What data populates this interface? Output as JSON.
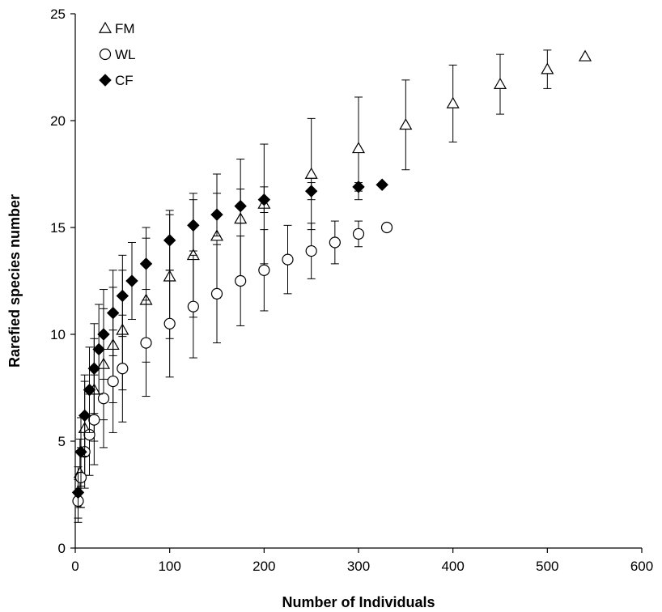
{
  "chart_data": {
    "type": "scatter",
    "title": "",
    "xlabel": "Number of Individuals",
    "ylabel": "Rarefied species number",
    "xlim": [
      0,
      600
    ],
    "ylim": [
      0,
      25
    ],
    "xticks": [
      0,
      100,
      200,
      300,
      400,
      500,
      600
    ],
    "yticks": [
      0,
      5,
      10,
      15,
      20,
      25
    ],
    "grid": false,
    "legend_position": "top-left",
    "series": [
      {
        "name": "FM",
        "marker": "open-triangle",
        "color": "#000000",
        "x": [
          5,
          10,
          20,
          30,
          40,
          50,
          75,
          100,
          125,
          150,
          175,
          200,
          250,
          300,
          350,
          400,
          450,
          500,
          540
        ],
        "y": [
          3.5,
          5.6,
          7.4,
          8.6,
          9.5,
          10.2,
          11.6,
          12.7,
          13.7,
          14.6,
          15.4,
          16.1,
          17.5,
          18.7,
          19.8,
          20.8,
          21.7,
          22.4,
          23.0
        ],
        "error": [
          1.6,
          2.2,
          2.4,
          2.6,
          2.7,
          2.8,
          2.9,
          2.9,
          2.9,
          2.9,
          2.8,
          2.8,
          2.6,
          2.4,
          2.1,
          1.8,
          1.4,
          0.9,
          0.0
        ]
      },
      {
        "name": "WL",
        "marker": "open-circle",
        "color": "#000000",
        "x": [
          3,
          6,
          10,
          15,
          20,
          30,
          40,
          50,
          75,
          100,
          125,
          150,
          175,
          200,
          225,
          250,
          275,
          300,
          330
        ],
        "y": [
          2.2,
          3.3,
          4.5,
          5.3,
          6.0,
          7.0,
          7.8,
          8.4,
          9.6,
          10.5,
          11.3,
          11.9,
          12.5,
          13.0,
          13.5,
          13.9,
          14.3,
          14.7,
          15.0
        ],
        "error": [
          1.0,
          1.4,
          1.7,
          1.9,
          2.1,
          2.3,
          2.4,
          2.5,
          2.5,
          2.5,
          2.4,
          2.3,
          2.1,
          1.9,
          1.6,
          1.3,
          1.0,
          0.6,
          0.0
        ]
      },
      {
        "name": "CF",
        "marker": "filled-diamond",
        "color": "#000000",
        "x": [
          3,
          6,
          10,
          15,
          20,
          25,
          30,
          40,
          50,
          60,
          75,
          100,
          125,
          150,
          175,
          200,
          250,
          300,
          325
        ],
        "y": [
          2.6,
          4.5,
          6.2,
          7.4,
          8.4,
          9.3,
          10.0,
          11.0,
          11.8,
          12.5,
          13.3,
          14.4,
          15.1,
          15.6,
          16.0,
          16.3,
          16.7,
          16.9,
          17.0
        ],
        "error": [
          1.2,
          1.6,
          1.9,
          2.0,
          2.1,
          2.1,
          2.1,
          2.0,
          1.9,
          1.8,
          1.7,
          1.4,
          1.2,
          1.0,
          0.8,
          0.6,
          0.4,
          0.2,
          0.0
        ]
      }
    ]
  }
}
